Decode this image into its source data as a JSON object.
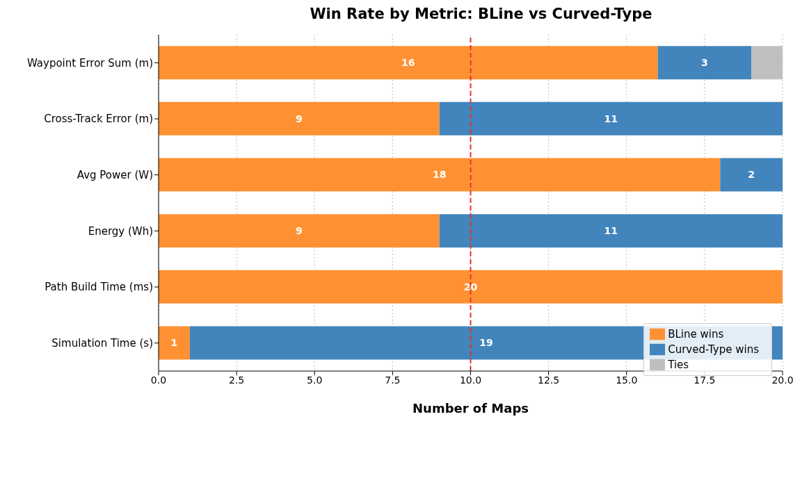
{
  "chart_data": {
    "type": "bar",
    "orientation": "horizontal",
    "stacked": true,
    "title": "Win Rate by Metric: BLine vs Curved-Type",
    "xlabel": "Number of Maps",
    "categories": [
      "Waypoint Error Sum (m)",
      "Cross-Track Error (m)",
      "Avg Power (W)",
      "Energy (Wh)",
      "Path Build Time (ms)",
      "Simulation Time (s)"
    ],
    "series": [
      {
        "name": "BLine wins",
        "color": "#ff9133",
        "values": [
          16,
          9,
          18,
          9,
          20,
          1
        ],
        "value_labels": [
          "16",
          "9",
          "18",
          "9",
          "20",
          "1"
        ]
      },
      {
        "name": "Curved-Type wins",
        "color": "#4285bd",
        "values": [
          3,
          11,
          2,
          11,
          0,
          19
        ],
        "value_labels": [
          "3",
          "11",
          "2",
          "11",
          null,
          "19"
        ]
      },
      {
        "name": "Ties",
        "color": "#bfbfbf",
        "values": [
          1,
          0,
          0,
          0,
          0,
          0
        ],
        "value_labels": [
          null,
          null,
          null,
          null,
          null,
          null
        ]
      }
    ],
    "xlim": [
      0,
      20
    ],
    "xticks": [
      {
        "value": 0,
        "label": "0.0"
      },
      {
        "value": 2.5,
        "label": "2.5"
      },
      {
        "value": 5,
        "label": "5.0"
      },
      {
        "value": 7.5,
        "label": "7.5"
      },
      {
        "value": 10,
        "label": "10.0"
      },
      {
        "value": 12.5,
        "label": "12.5"
      },
      {
        "value": 15,
        "label": "15.0"
      },
      {
        "value": 17.5,
        "label": "17.5"
      },
      {
        "value": 20,
        "label": "20.0"
      }
    ],
    "ref_lines": [
      {
        "axis": "x",
        "value": 10,
        "color": "#e8312a",
        "line_style": "dashed"
      }
    ],
    "grid": "x",
    "legend": "bottom right"
  }
}
